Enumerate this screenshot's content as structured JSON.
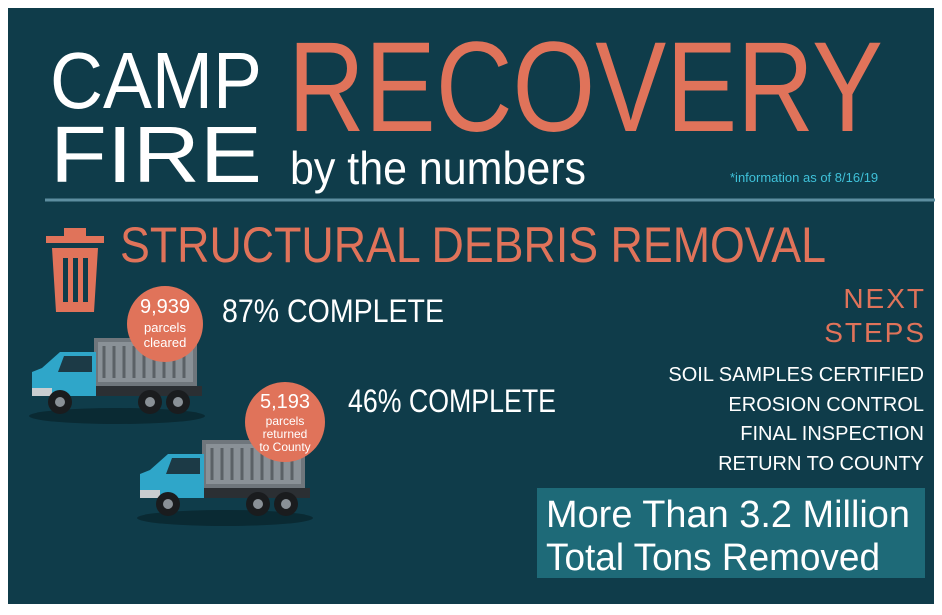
{
  "header": {
    "title_line1": "CAMP",
    "title_line2": "FIRE",
    "title_accent": "RECOVERY",
    "subtitle": "by the numbers",
    "note": "*information as of 8/16/19"
  },
  "section": {
    "title": "STRUCTURAL DEBRIS REMOVAL"
  },
  "stats": [
    {
      "count": "9,939",
      "label_lines": [
        "parcels",
        "cleared"
      ],
      "progress": "87% COMPLETE"
    },
    {
      "count": "5,193",
      "label_lines": [
        "parcels",
        "returned",
        "to County"
      ],
      "progress": "46% COMPLETE"
    }
  ],
  "next_steps": {
    "title_lines": [
      "NEXT",
      "STEPS"
    ],
    "items": [
      "SOIL SAMPLES CERTIFIED",
      "EROSION CONTROL",
      "FINAL INSPECTION",
      "RETURN TO COUNTY"
    ]
  },
  "total": {
    "lines": [
      "More Than 3.2 Million",
      "Total Tons Removed"
    ]
  }
}
